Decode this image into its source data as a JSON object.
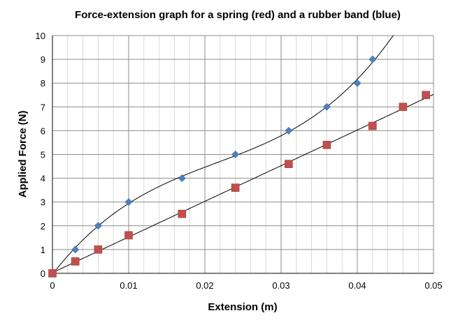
{
  "chart_data": {
    "type": "scatter",
    "title": "Force-extension graph for a spring (red) and a rubber band (blue)",
    "xlabel": "Extension (m)",
    "ylabel": "Applied Force (N)",
    "xlim": [
      0,
      0.05
    ],
    "ylim": [
      0,
      10
    ],
    "x_major_ticks": [
      0,
      0.01,
      0.02,
      0.03,
      0.04,
      0.05
    ],
    "x_tick_labels": [
      "0",
      "0.01",
      "0.02",
      "0.03",
      "0.04",
      "0.05"
    ],
    "y_major_ticks": [
      0,
      1,
      2,
      3,
      4,
      5,
      6,
      7,
      8,
      9,
      10
    ],
    "y_tick_labels": [
      "0",
      "1",
      "2",
      "3",
      "4",
      "5",
      "6",
      "7",
      "8",
      "9",
      "10"
    ],
    "x_minor_step": 0.002,
    "grid": true,
    "legend": "none",
    "series": [
      {
        "marker": "diamond",
        "color": "#4f81bd",
        "trendline": "polynomial-cubic",
        "x": [
          0,
          0.003,
          0.006,
          0.01,
          0.017,
          0.024,
          0.031,
          0.036,
          0.04,
          0.042
        ],
        "y": [
          0,
          1,
          2,
          3,
          4,
          5,
          6,
          7,
          8,
          9
        ]
      },
      {
        "marker": "square",
        "color": "#c0504d",
        "trendline": "linear",
        "x": [
          0,
          0.003,
          0.006,
          0.01,
          0.017,
          0.024,
          0.031,
          0.036,
          0.042,
          0.046,
          0.049
        ],
        "y": [
          0,
          0.5,
          1.0,
          1.6,
          2.5,
          3.6,
          4.6,
          5.4,
          6.2,
          7.0,
          7.5
        ]
      }
    ]
  }
}
